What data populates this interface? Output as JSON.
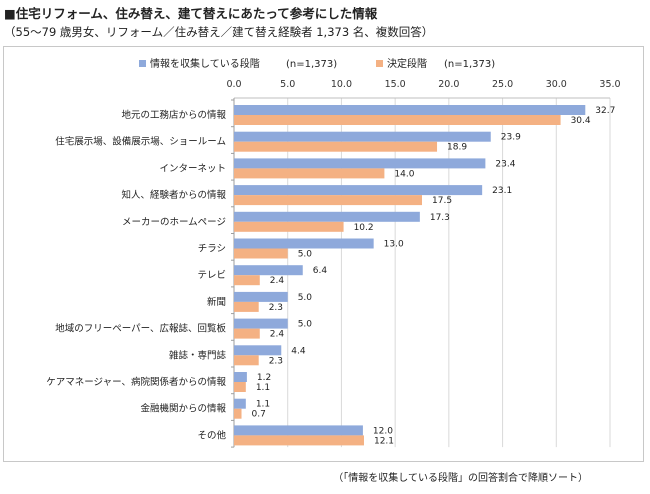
{
  "header": {
    "title": "■住宅リフォーム、住み替え、建て替えにあたって参考にした情報",
    "subtitle": "（55〜79 歳男女、リフォーム／住み替え／建て替え経験者 1,373 名、複数回答）"
  },
  "footnote": "（「情報を収集している段階」の回答割合で降順ソート）",
  "colors": {
    "series1": "#8ea9db",
    "series2": "#f4b183",
    "grid": "#d9d9d9"
  },
  "chart_data": {
    "type": "bar",
    "orientation": "horizontal",
    "title": "住宅リフォーム、住み替え、建て替えにあたって参考にした情報",
    "xlim": [
      0,
      35
    ],
    "x_ticks": [
      "0.0",
      "5.0",
      "10.0",
      "15.0",
      "20.0",
      "25.0",
      "30.0",
      "35.0"
    ],
    "legend_position": "top",
    "categories": [
      "地元の工務店からの情報",
      "住宅展示場、設備展示場、ショールーム",
      "インターネット",
      "知人、経験者からの情報",
      "メーカーのホームページ",
      "チラシ",
      "テレビ",
      "新聞",
      "地域のフリーペーパー、広報誌、回覧板",
      "雑誌・専門誌",
      "ケアマネージャー、病院関係者からの情報",
      "金融機関からの情報",
      "その他"
    ],
    "series": [
      {
        "name": "情報を収集している段階",
        "n_label": "(n=1,373)",
        "values": [
          32.7,
          23.9,
          23.4,
          23.1,
          17.3,
          13.0,
          6.4,
          5.0,
          5.0,
          4.4,
          1.2,
          1.1,
          12.0
        ],
        "labels": [
          "32.7",
          "23.9",
          "23.4",
          "23.1",
          "17.3",
          "13.0",
          "6.4",
          "5.0",
          "5.0",
          "4.4",
          "1.2",
          "1.1",
          "12.0"
        ]
      },
      {
        "name": "決定段階",
        "n_label": "(n=1,373)",
        "values": [
          30.4,
          18.9,
          14.0,
          17.5,
          10.2,
          5.0,
          2.4,
          2.3,
          2.4,
          2.3,
          1.1,
          0.7,
          12.1
        ],
        "labels": [
          "30.4",
          "18.9",
          "14.0",
          "17.5",
          "10.2",
          "5.0",
          "2.4",
          "2.3",
          "2.4",
          "2.3",
          "1.1",
          "0.7",
          "12.1"
        ]
      }
    ]
  }
}
